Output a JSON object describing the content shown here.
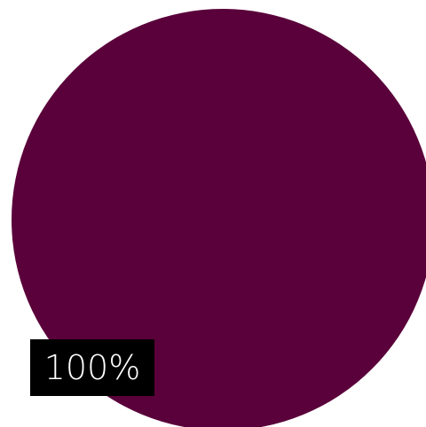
{
  "chart_data": {
    "type": "pie",
    "title": "",
    "slices": [
      {
        "name": "",
        "value": 100,
        "color": "#5a003a"
      }
    ],
    "data_labels": [
      "100%"
    ],
    "legend": "none"
  }
}
